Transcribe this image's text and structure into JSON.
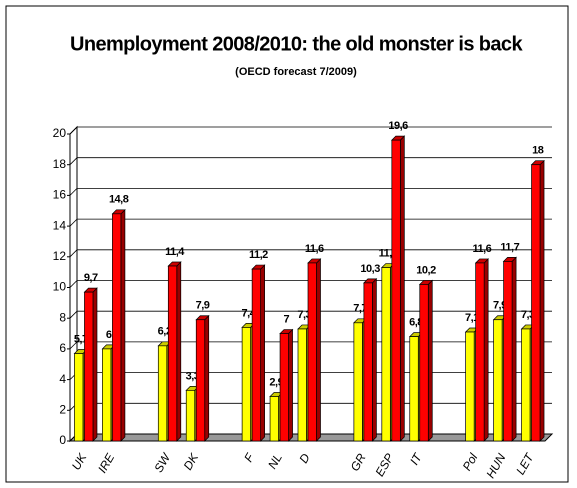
{
  "chart_data": {
    "type": "bar3d",
    "title": "Unemployment 2008/2010: the old monster is back",
    "subtitle": "(OECD forecast 7/2009)",
    "categories": [
      "UK",
      "IRE",
      null,
      "SW",
      "DK",
      null,
      "F",
      "NL",
      "D",
      null,
      "GR",
      "ESP",
      "IT",
      null,
      "Pol",
      "HUN",
      "LET"
    ],
    "series": [
      {
        "color": "#ffff00",
        "values": [
          5.7,
          6,
          null,
          6.2,
          3.3,
          null,
          7.4,
          2.9,
          7.3,
          null,
          7.7,
          11.3,
          6.8,
          null,
          7.1,
          7.9,
          7.3
        ],
        "value_labels": [
          "5,7",
          "6",
          null,
          "6,2",
          "3,3",
          null,
          "7,4",
          "2,9",
          "7,3",
          null,
          "7,7",
          "11,3",
          "6,8",
          null,
          "7,1",
          "7,9",
          "7,3"
        ]
      },
      {
        "color": "#ff0000",
        "values": [
          9.7,
          14.8,
          null,
          11.4,
          7.9,
          null,
          11.2,
          7,
          11.6,
          null,
          10.3,
          19.6,
          10.2,
          null,
          11.6,
          11.7,
          18
        ],
        "value_labels": [
          "9,7",
          "14,8",
          null,
          "11,4",
          "7,9",
          null,
          "11,2",
          "7",
          "11,6",
          null,
          "10,3",
          "19,6",
          "10,2",
          null,
          "11,6",
          "11,7",
          "18"
        ]
      }
    ],
    "ylim": [
      0,
      20
    ],
    "yticks": [
      0,
      2,
      4,
      6,
      8,
      10,
      12,
      14,
      16,
      18,
      20
    ],
    "grid": true
  }
}
